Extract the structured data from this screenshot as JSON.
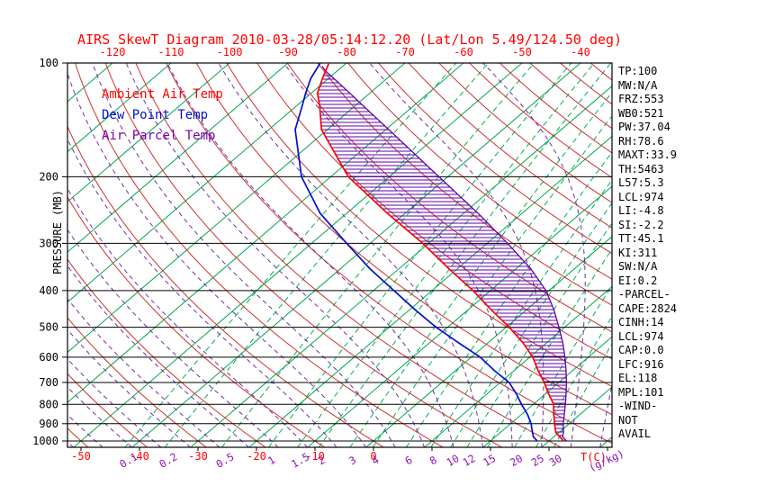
{
  "chart_data": {
    "type": "skewt",
    "title": "AIRS SkewT Diagram 2010-03-28/05:14:12.20 (Lat/Lon 5.49/124.50 deg)",
    "ylabel": "PRESSURE (MB)",
    "x_unit_temp": "T(C)",
    "x_unit_mixing": "(g/kg)",
    "pressure_scale": "log",
    "pressure_range_mb": [
      100,
      1040
    ],
    "pressure_ticks_mb": [
      100,
      200,
      300,
      400,
      500,
      600,
      700,
      800,
      900,
      1000
    ],
    "top_temp_ticks_c": [
      -120,
      -110,
      -100,
      -90,
      -80,
      -70,
      -60,
      -50,
      -40
    ],
    "bottom_temp_ticks_c": [
      -50,
      -40,
      -30,
      -20,
      -10,
      0
    ],
    "mixing_ratio_lines_gkg": [
      0.1,
      0.2,
      0.5,
      1,
      1.5,
      2,
      3,
      4,
      6,
      8,
      10,
      12,
      15,
      20,
      25,
      30
    ],
    "isotherms_c": {
      "min": -160,
      "max": 40,
      "step": 10
    },
    "dry_adiabats_theta_c": {
      "min": -50,
      "max": 190,
      "step": 10
    },
    "moist_adiabats_start_c": {
      "min": -60,
      "max": 40,
      "step": 5
    },
    "legend": [
      {
        "label": "Ambient Air Temp",
        "color": "#ff0000"
      },
      {
        "label": "Dew Point Temp",
        "color": "#0010cc"
      },
      {
        "label": "Air Parcel Temp",
        "color": "#7a00b4"
      }
    ],
    "colors": {
      "title": "#ff0000",
      "isotherm": "#00a550",
      "mixing_ratio": "#00b058",
      "dry_adiabat": "#d03030",
      "moist_adiabat": "#7030a0",
      "ambient": "#ff0000",
      "dewpoint": "#0010cc",
      "parcel": "#6000a8",
      "hatch": "#6000a8",
      "axis_temp_text": "#ff0000",
      "axis_mixing_text": "#9010b0",
      "grid": "#000000"
    },
    "stats": [
      "TP:100",
      "MW:N/A",
      "FRZ:553",
      "WB0:521",
      "PW:37.04",
      "RH:78.6",
      "MAXT:33.9",
      "TH:5463",
      "L57:5.3",
      "LCL:974",
      "LI:-4.8",
      "SI:-2.2",
      "TT:45.1",
      "KI:311",
      "SW:N/A",
      "EI:0.2",
      "-PARCEL-",
      "CAPE:2824",
      "CINH:14",
      "LCL:974",
      "CAP:0.0",
      "LFC:916",
      "EL:118",
      "MPL:101",
      "-WIND-",
      "NOT",
      "AVAIL"
    ],
    "profiles": {
      "ambient_air_temp": [
        [
          1000,
          32.5
        ],
        [
          975,
          31
        ],
        [
          950,
          29.5
        ],
        [
          925,
          28.5
        ],
        [
          900,
          27.5
        ],
        [
          850,
          25.5
        ],
        [
          800,
          23.5
        ],
        [
          750,
          20.5
        ],
        [
          700,
          17.5
        ],
        [
          650,
          14
        ],
        [
          600,
          10.5
        ],
        [
          550,
          6
        ],
        [
          500,
          0.5
        ],
        [
          450,
          -6
        ],
        [
          400,
          -13
        ],
        [
          350,
          -21.5
        ],
        [
          300,
          -31
        ],
        [
          250,
          -43
        ],
        [
          200,
          -57
        ],
        [
          150,
          -71
        ],
        [
          130,
          -76
        ],
        [
          120,
          -79
        ],
        [
          110,
          -81
        ],
        [
          100,
          -83
        ]
      ],
      "dew_point_temp": [
        [
          1000,
          28
        ],
        [
          975,
          26.5
        ],
        [
          950,
          25.5
        ],
        [
          925,
          24.5
        ],
        [
          900,
          23.5
        ],
        [
          850,
          21
        ],
        [
          800,
          18
        ],
        [
          750,
          15
        ],
        [
          700,
          11.5
        ],
        [
          650,
          6.5
        ],
        [
          600,
          1.5
        ],
        [
          550,
          -5
        ],
        [
          500,
          -12
        ],
        [
          450,
          -19
        ],
        [
          400,
          -26.5
        ],
        [
          350,
          -35
        ],
        [
          300,
          -44
        ],
        [
          250,
          -54.5
        ],
        [
          200,
          -65
        ],
        [
          150,
          -75.5
        ],
        [
          130,
          -79
        ],
        [
          120,
          -81
        ],
        [
          110,
          -83
        ],
        [
          100,
          -84.5
        ]
      ],
      "air_parcel_temp": [
        [
          1000,
          33
        ],
        [
          975,
          31.5
        ],
        [
          950,
          30.8
        ],
        [
          925,
          29.9
        ],
        [
          900,
          29
        ],
        [
          850,
          27.3
        ],
        [
          800,
          25.5
        ],
        [
          750,
          23.5
        ],
        [
          700,
          21.3
        ],
        [
          650,
          18.8
        ],
        [
          600,
          16
        ],
        [
          550,
          12.8
        ],
        [
          500,
          9
        ],
        [
          450,
          4.7
        ],
        [
          400,
          -0.5
        ],
        [
          350,
          -7.5
        ],
        [
          300,
          -16.5
        ],
        [
          250,
          -27.5
        ],
        [
          200,
          -41.5
        ],
        [
          150,
          -59.5
        ],
        [
          130,
          -68.5
        ],
        [
          120,
          -73.5
        ],
        [
          110,
          -79
        ],
        [
          105,
          -82
        ],
        [
          102,
          -83.5
        ]
      ]
    }
  }
}
